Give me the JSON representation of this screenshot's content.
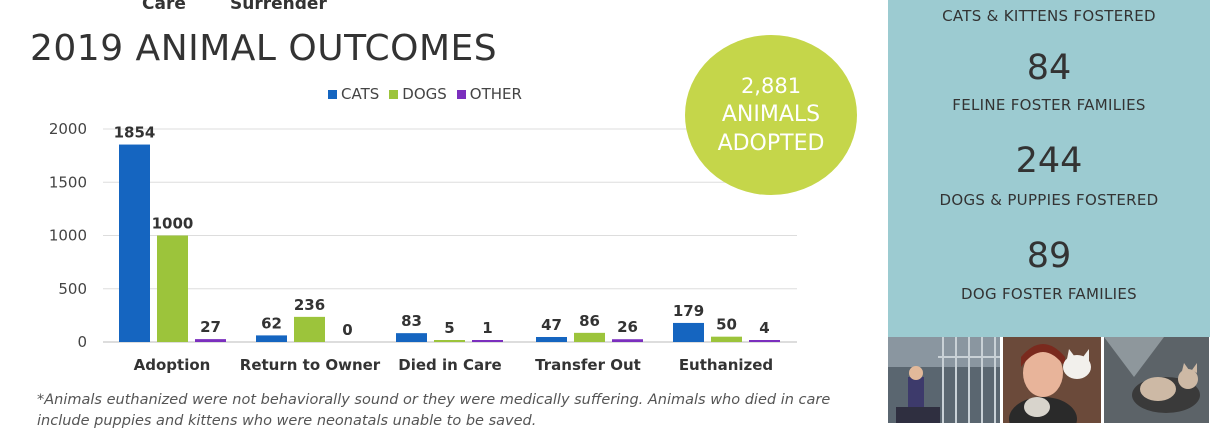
{
  "header_fragment": {
    "left": "Care",
    "right": "Surrender"
  },
  "title": "2019 ANIMAL OUTCOMES",
  "badge": {
    "number": "2,881",
    "line1": "ANIMALS",
    "line2": "ADOPTED"
  },
  "footnote": "*Animals euthanized were not behaviorally sound or they were medically suffering. Animals who died in care include puppies and kittens who were neonatals unable to be saved.",
  "side_panel": {
    "stats": [
      {
        "number": "",
        "label": "CATS & KITTENS FOSTERED"
      },
      {
        "number": "84",
        "label": "FELINE FOSTER FAMILIES"
      },
      {
        "number": "244",
        "label": "DOGS & PUPPIES FOSTERED"
      },
      {
        "number": "89",
        "label": "DOG FOSTER FAMILIES"
      }
    ],
    "background": "#9ccbd1"
  },
  "photos": [
    {
      "icon": "shelter-kennel-photo"
    },
    {
      "icon": "woman-with-kittens-photo"
    },
    {
      "icon": "cat-lounging-photo"
    }
  ],
  "chart_data": {
    "type": "bar",
    "categories": [
      "Adoption",
      "Return to Owner",
      "Died in Care",
      "Transfer Out",
      "Euthanized"
    ],
    "series": [
      {
        "name": "CATS",
        "color": "#1565c0",
        "values": [
          1854,
          62,
          83,
          47,
          179
        ]
      },
      {
        "name": "DOGS",
        "color": "#9cc43b",
        "values": [
          1000,
          236,
          5,
          86,
          50
        ]
      },
      {
        "name": "OTHER",
        "color": "#7b2fbe",
        "values": [
          27,
          0,
          1,
          26,
          4
        ]
      }
    ],
    "yticks": [
      0,
      500,
      1000,
      1500,
      2000
    ],
    "ylim": [
      0,
      2000
    ],
    "grid": true,
    "legend": "top-center"
  }
}
